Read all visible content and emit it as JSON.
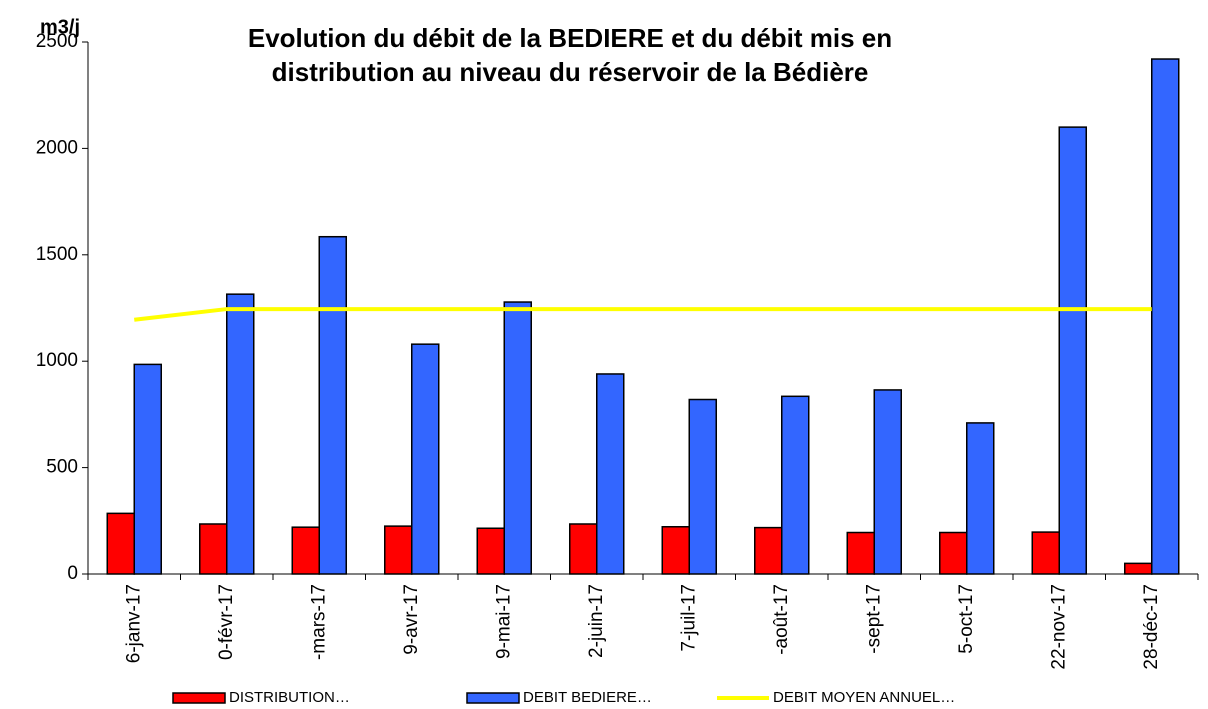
{
  "chart_data": {
    "type": "bar",
    "title": [
      "Evolution du débit de la BEDIERE et du débit mis en",
      "distribution au niveau du réservoir de la Bédière"
    ],
    "y_label": "m3/j",
    "categories": [
      "6-janv-17",
      "0-févr-17",
      "-mars-17",
      "9-avr-17",
      "9-mai-17",
      "2-juin-17",
      "7-juil-17",
      "-août-17",
      "-sept-17",
      "5-oct-17",
      "22-nov-17",
      "28-déc-17"
    ],
    "series": [
      {
        "name": "DISTRIBUTION…",
        "color": "#ff0000",
        "type": "bar",
        "values": [
          285,
          235,
          220,
          225,
          215,
          235,
          222,
          218,
          195,
          195,
          197,
          50
        ]
      },
      {
        "name": "DEBIT BEDIERE…",
        "color": "#3366ff",
        "type": "bar",
        "values": [
          985,
          1315,
          1585,
          1080,
          1278,
          940,
          820,
          835,
          865,
          710,
          2100,
          2420
        ]
      },
      {
        "name": "DEBIT MOYEN ANNUEL…",
        "color": "#ffff00",
        "type": "line",
        "values": [
          1195,
          1245,
          1245,
          1245,
          1245,
          1245,
          1245,
          1245,
          1245,
          1245,
          1245,
          1245
        ]
      }
    ],
    "ylim": [
      0,
      2500
    ],
    "yticks": [
      0,
      500,
      1000,
      1500,
      2000,
      2500
    ],
    "legend": "bottom"
  }
}
